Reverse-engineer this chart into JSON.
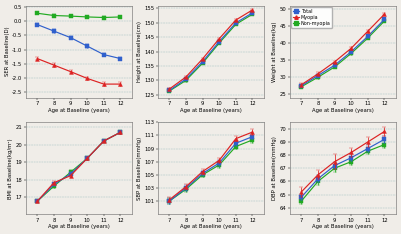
{
  "ages": [
    7,
    8,
    9,
    10,
    11,
    12
  ],
  "colors": {
    "total": "#3060cc",
    "myopia": "#dd2222",
    "non_myopia": "#22aa22"
  },
  "SER": {
    "total": [
      -0.12,
      -0.35,
      -0.58,
      -0.88,
      -1.18,
      -1.32
    ],
    "myopia": [
      -1.32,
      -1.55,
      -1.78,
      -2.02,
      -2.22,
      -2.22
    ],
    "non_myopia": [
      0.28,
      0.2,
      0.18,
      0.15,
      0.13,
      0.15
    ],
    "yerr_total": [
      0.06,
      0.06,
      0.06,
      0.06,
      0.06,
      0.06
    ],
    "yerr_myopia": [
      0.06,
      0.06,
      0.06,
      0.06,
      0.06,
      0.06
    ],
    "yerr_non": [
      0.04,
      0.04,
      0.04,
      0.04,
      0.04,
      0.04
    ],
    "ylim": [
      0.55,
      -2.7
    ],
    "yticks": [
      0.5,
      0.0,
      -0.5,
      -1.0,
      -1.5,
      -2.0,
      -2.5
    ],
    "ylabel": "SER at Baseline(D)",
    "invert_y": true
  },
  "Height": {
    "total": [
      126.5,
      130.5,
      136.5,
      143.5,
      150.0,
      153.5
    ],
    "myopia": [
      127.0,
      131.2,
      137.5,
      144.5,
      151.0,
      154.5
    ],
    "non_myopia": [
      126.3,
      130.0,
      136.0,
      143.0,
      149.5,
      153.0
    ],
    "yerr_total": [
      0.4,
      0.4,
      0.4,
      0.4,
      0.4,
      0.4
    ],
    "yerr_myopia": [
      0.4,
      0.4,
      0.4,
      0.4,
      0.4,
      0.4
    ],
    "yerr_non": [
      0.4,
      0.4,
      0.4,
      0.4,
      0.4,
      0.4
    ],
    "ylim": [
      124,
      156
    ],
    "yticks": [
      125,
      130,
      135,
      140,
      145,
      150,
      155
    ],
    "ylabel": "Height at Baseline(cm)",
    "invert_y": false
  },
  "Weight": {
    "total": [
      27.5,
      30.5,
      33.5,
      37.5,
      42.0,
      47.0
    ],
    "myopia": [
      27.8,
      31.0,
      34.5,
      38.5,
      43.5,
      48.5
    ],
    "non_myopia": [
      27.2,
      30.0,
      33.0,
      37.0,
      41.5,
      46.5
    ],
    "yerr_total": [
      0.4,
      0.4,
      0.4,
      0.4,
      0.4,
      0.4
    ],
    "yerr_myopia": [
      0.4,
      0.4,
      0.4,
      0.4,
      0.4,
      0.4
    ],
    "yerr_non": [
      0.4,
      0.4,
      0.4,
      0.4,
      0.4,
      0.4
    ],
    "ylim": [
      24,
      51
    ],
    "yticks": [
      25,
      30,
      35,
      40,
      45,
      50
    ],
    "ylabel": "Weight at Baseline(kg)",
    "invert_y": false
  },
  "BMI": {
    "total": [
      16.75,
      17.72,
      18.32,
      19.22,
      20.22,
      20.72
    ],
    "myopia": [
      16.75,
      17.82,
      18.22,
      19.22,
      20.22,
      20.72
    ],
    "non_myopia": [
      16.75,
      17.62,
      18.42,
      19.22,
      20.22,
      20.72
    ],
    "yerr_total": [
      0.06,
      0.1,
      0.1,
      0.08,
      0.08,
      0.08
    ],
    "yerr_myopia": [
      0.06,
      0.1,
      0.1,
      0.08,
      0.08,
      0.08
    ],
    "yerr_non": [
      0.06,
      0.1,
      0.1,
      0.08,
      0.08,
      0.08
    ],
    "ylim": [
      16.0,
      21.3
    ],
    "yticks": [
      17,
      18,
      19,
      20,
      21
    ],
    "ylabel": "BMI at Baseline(kg/m²)",
    "invert_y": false
  },
  "SBP": {
    "total": [
      101.0,
      103.0,
      105.2,
      106.8,
      109.8,
      110.8
    ],
    "myopia": [
      101.2,
      103.2,
      105.5,
      107.2,
      110.5,
      111.5
    ],
    "non_myopia": [
      101.0,
      102.8,
      105.0,
      106.5,
      109.3,
      110.3
    ],
    "yerr_total": [
      0.4,
      0.4,
      0.4,
      0.4,
      0.4,
      0.4
    ],
    "yerr_myopia": [
      0.4,
      0.4,
      0.4,
      0.4,
      0.4,
      0.4
    ],
    "yerr_non": [
      0.4,
      0.4,
      0.4,
      0.4,
      0.4,
      0.4
    ],
    "ylim": [
      99,
      113
    ],
    "yticks": [
      101,
      103,
      105,
      107,
      109,
      111,
      113
    ],
    "ylabel": "SBP at Baseline(mmHg)",
    "invert_y": false
  },
  "DBP": {
    "total": [
      64.8,
      66.2,
      67.2,
      67.8,
      68.5,
      69.2
    ],
    "myopia": [
      65.2,
      66.5,
      67.5,
      68.2,
      69.0,
      69.8
    ],
    "non_myopia": [
      64.5,
      66.0,
      67.0,
      67.5,
      68.3,
      68.8
    ],
    "yerr_total": [
      0.25,
      0.25,
      0.25,
      0.25,
      0.25,
      0.25
    ],
    "yerr_myopia": [
      0.35,
      0.35,
      0.55,
      0.35,
      0.35,
      0.35
    ],
    "yerr_non": [
      0.25,
      0.25,
      0.25,
      0.25,
      0.25,
      0.25
    ],
    "ylim": [
      63.5,
      70.5
    ],
    "yticks": [
      64,
      65,
      66,
      67,
      68,
      69,
      70
    ],
    "ylabel": "DBP at Baseline(mmHg)",
    "invert_y": false
  },
  "xlabel": "Age at Baseline (years)",
  "bg_color": "#f0ede8"
}
